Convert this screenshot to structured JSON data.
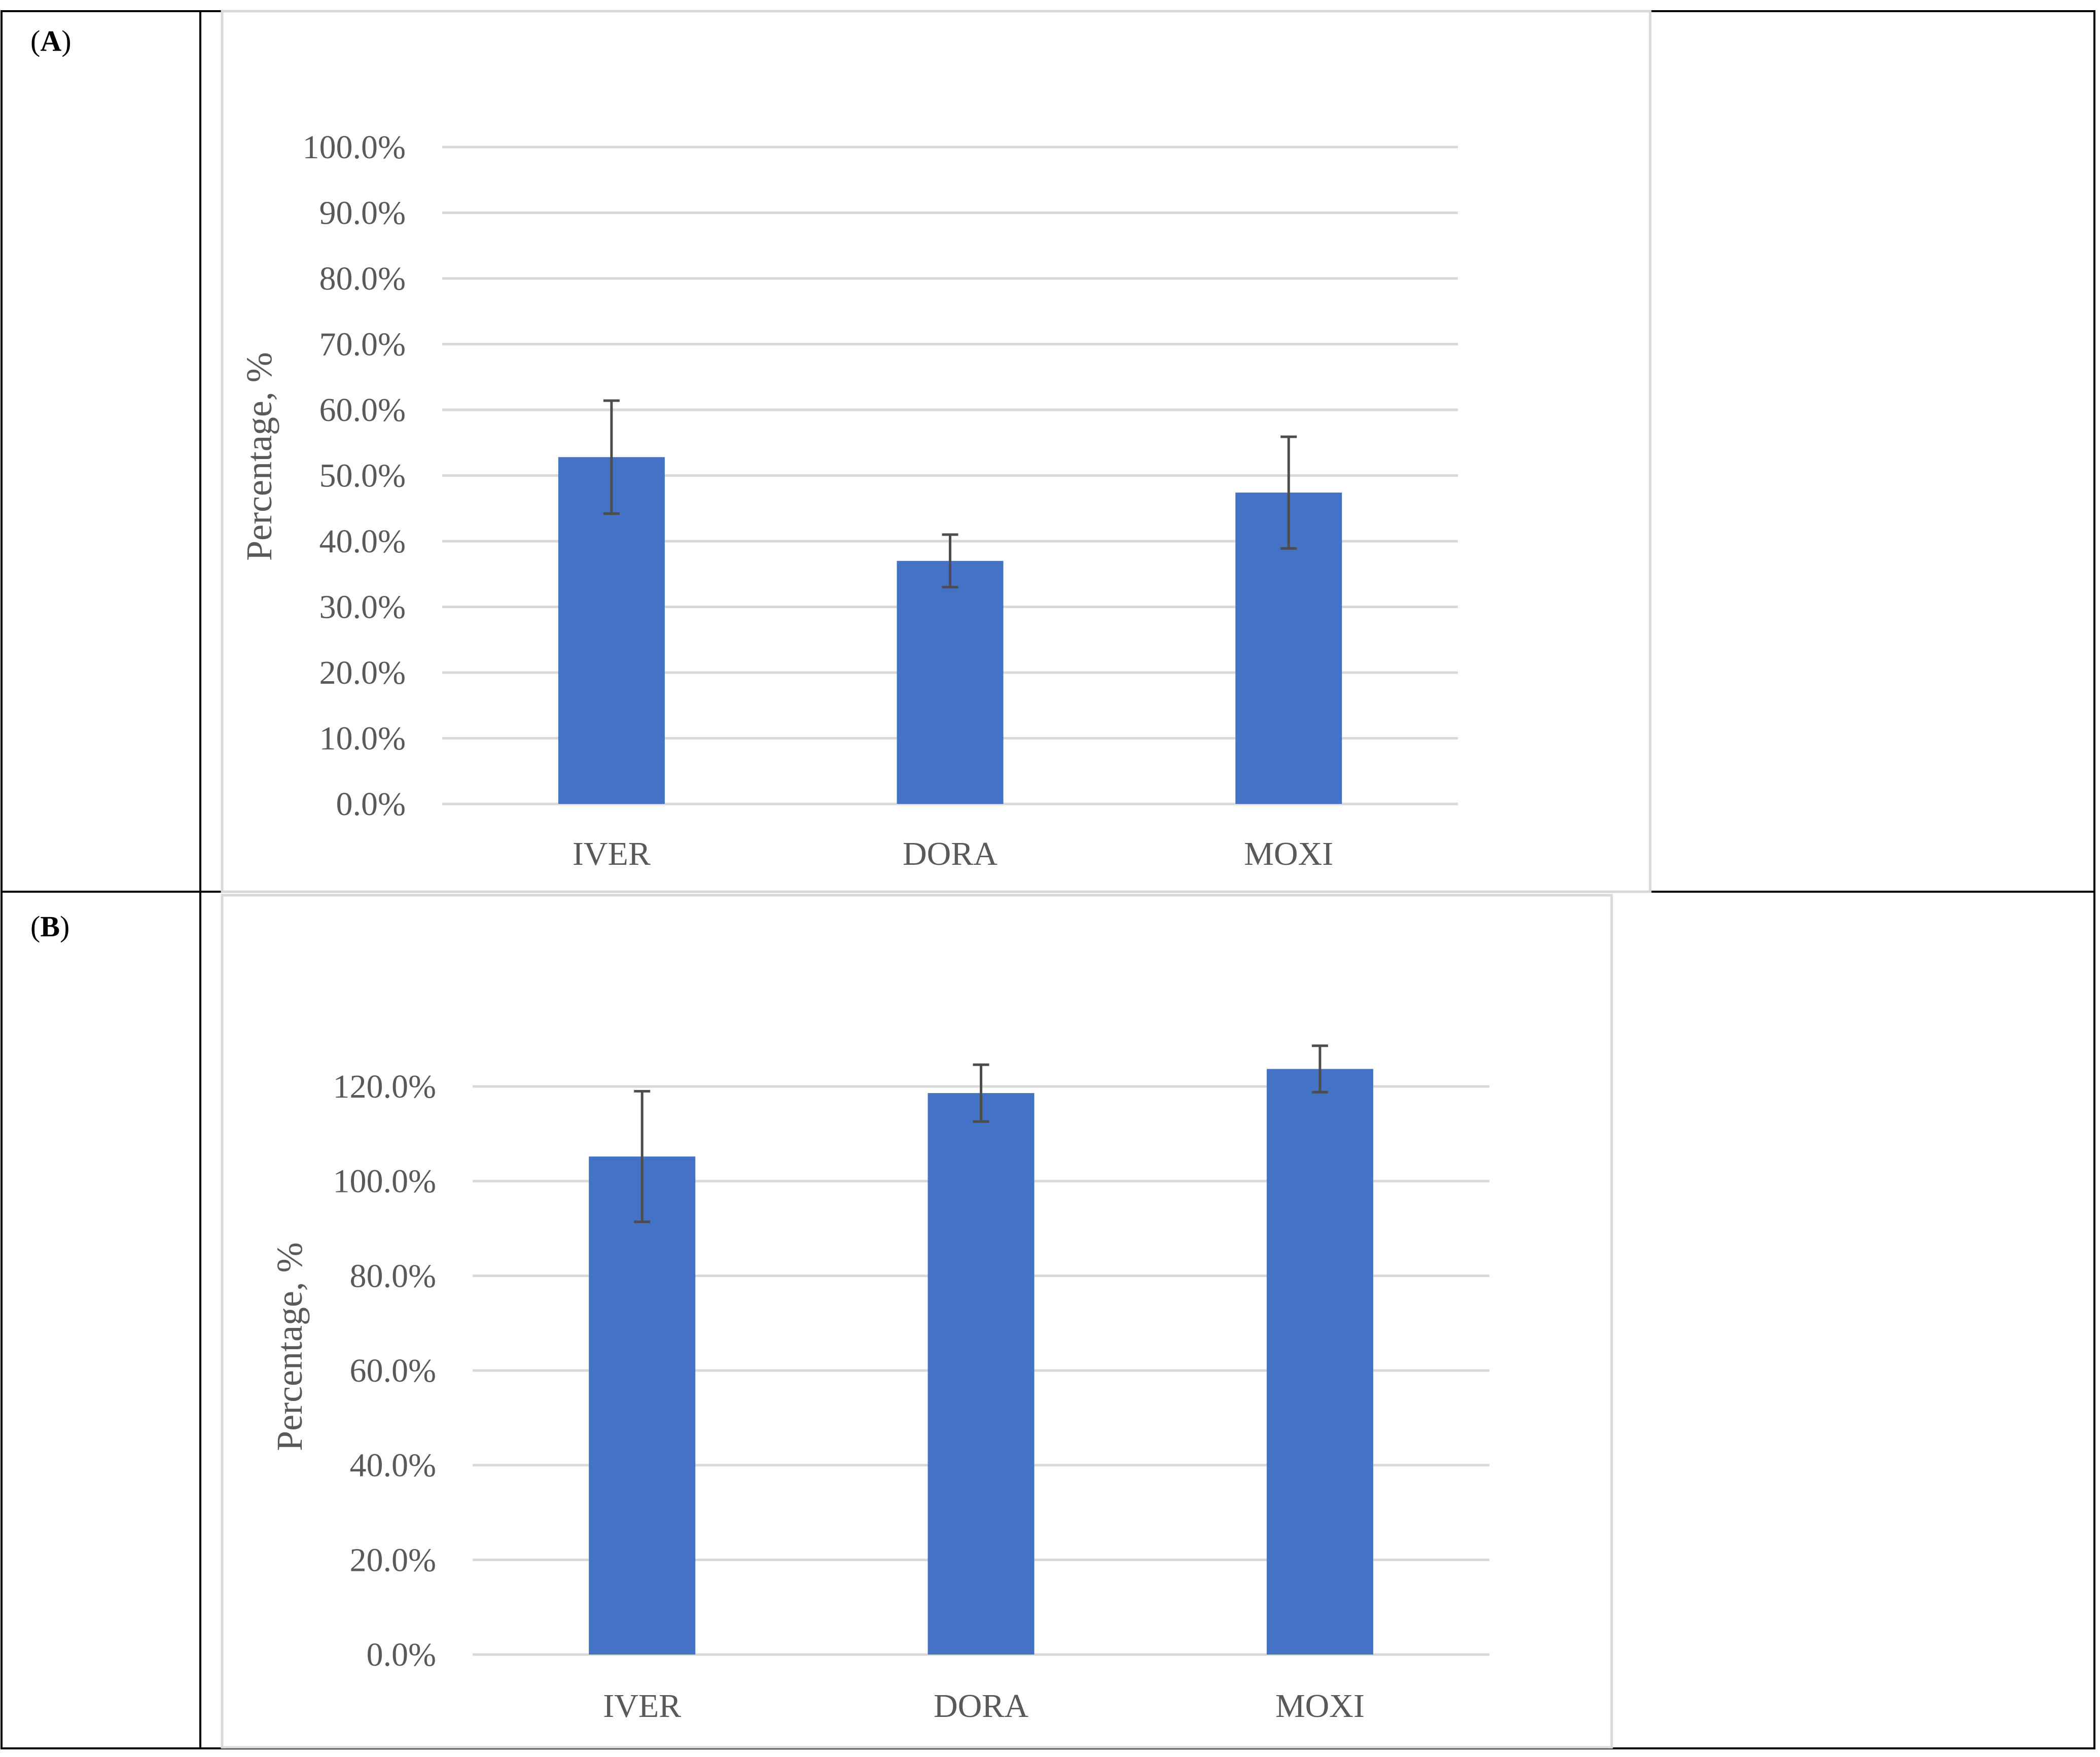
{
  "panels": [
    {
      "label": "A"
    },
    {
      "label": "B"
    }
  ],
  "colors": {
    "bar": "#4472C4",
    "error_bar": "#4d4d4d",
    "grid": "#d9d9d9",
    "text": "#595959"
  },
  "chart_data": [
    {
      "type": "bar",
      "title": "",
      "xlabel": "",
      "ylabel": "Percentage, %",
      "categories": [
        "IVER",
        "DORA",
        "MOXI"
      ],
      "values": [
        52.8,
        37.0,
        47.4
      ],
      "error_bars": [
        8.6,
        4.0,
        8.5
      ],
      "ylim": [
        0,
        100
      ],
      "yticks": [
        0,
        10,
        20,
        30,
        40,
        50,
        60,
        70,
        80,
        90,
        100
      ],
      "ytick_labels": [
        "0.0%",
        "10.0%",
        "20.0%",
        "30.0%",
        "40.0%",
        "50.0%",
        "60.0%",
        "70.0%",
        "80.0%",
        "90.0%",
        "100.0%"
      ],
      "grid": true
    },
    {
      "type": "bar",
      "title": "",
      "xlabel": "",
      "ylabel": "Percentage, %",
      "categories": [
        "IVER",
        "DORA",
        "MOXI"
      ],
      "values": [
        105.2,
        118.6,
        123.7
      ],
      "error_bars": [
        13.8,
        6.0,
        4.9
      ],
      "ylim": [
        0,
        120
      ],
      "yticks": [
        0,
        20,
        40,
        60,
        80,
        100,
        120
      ],
      "ytick_labels": [
        "0.0%",
        "20.0%",
        "40.0%",
        "60.0%",
        "80.0%",
        "100.0%",
        "120.0%"
      ],
      "grid": true
    }
  ]
}
